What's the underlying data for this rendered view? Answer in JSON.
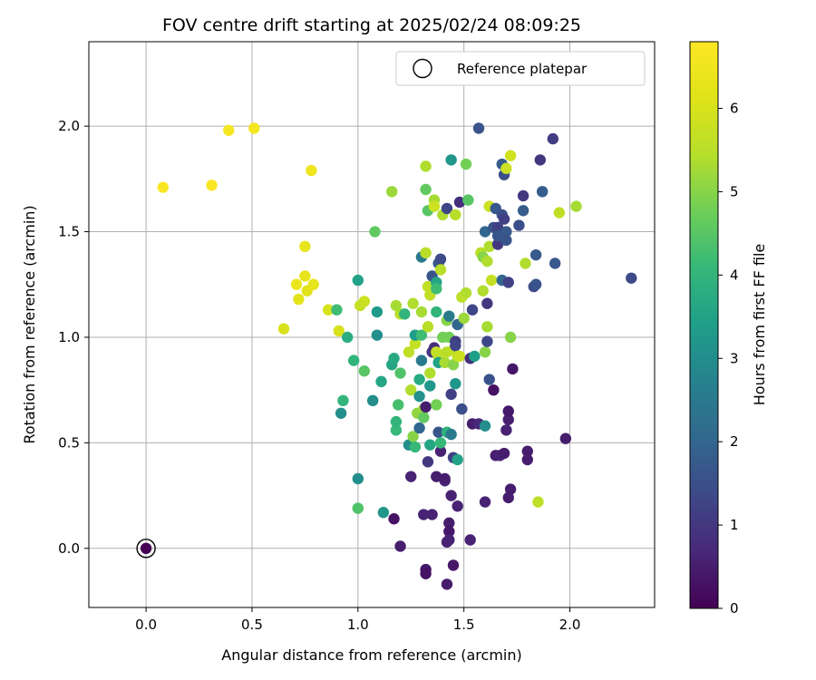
{
  "chart_data": {
    "type": "scatter",
    "title": "FOV centre drift starting at 2025/02/24 08:09:25",
    "xlabel": "Angular distance from reference (arcmin)",
    "ylabel": "Rotation from reference (arcmin)",
    "xlim": [
      -0.27,
      2.4
    ],
    "ylim": [
      -0.28,
      2.4
    ],
    "x_ticks": [
      0.0,
      0.5,
      1.0,
      1.5,
      2.0
    ],
    "y_ticks": [
      0.0,
      0.5,
      1.0,
      1.5,
      2.0
    ],
    "x_tick_labels": [
      "0.0",
      "0.5",
      "1.0",
      "1.5",
      "2.0"
    ],
    "y_tick_labels": [
      "0.0",
      "0.5",
      "1.0",
      "1.5",
      "2.0"
    ],
    "grid": true,
    "colormap": "viridis",
    "colorbar": {
      "label": "Hours from first FF file",
      "range": [
        0,
        6.8
      ],
      "ticks": [
        0,
        1,
        2,
        3,
        4,
        5,
        6
      ],
      "tick_labels": [
        "0",
        "1",
        "2",
        "3",
        "4",
        "5",
        "6"
      ]
    },
    "legend": {
      "position": "top-right",
      "entries": [
        {
          "label": "Reference platepar",
          "marker": "open-circle"
        }
      ]
    },
    "reference_point": {
      "x": 0.0,
      "y": 0.0
    },
    "points": [
      {
        "x": 0.0,
        "y": 0.0,
        "c": 0.0
      },
      {
        "x": 0.08,
        "y": 1.71,
        "c": 6.7
      },
      {
        "x": 0.31,
        "y": 1.72,
        "c": 6.7
      },
      {
        "x": 0.39,
        "y": 1.98,
        "c": 6.6
      },
      {
        "x": 0.51,
        "y": 1.99,
        "c": 6.6
      },
      {
        "x": 0.78,
        "y": 1.79,
        "c": 6.5
      },
      {
        "x": 0.65,
        "y": 1.04,
        "c": 6.0
      },
      {
        "x": 0.71,
        "y": 1.25,
        "c": 6.4
      },
      {
        "x": 0.72,
        "y": 1.18,
        "c": 6.2
      },
      {
        "x": 0.75,
        "y": 1.29,
        "c": 6.3
      },
      {
        "x": 0.76,
        "y": 1.22,
        "c": 6.2
      },
      {
        "x": 0.79,
        "y": 1.25,
        "c": 6.3
      },
      {
        "x": 0.75,
        "y": 1.43,
        "c": 6.3
      },
      {
        "x": 0.86,
        "y": 1.13,
        "c": 6.0
      },
      {
        "x": 0.91,
        "y": 1.03,
        "c": 6.0
      },
      {
        "x": 1.03,
        "y": 1.17,
        "c": 5.8
      },
      {
        "x": 1.01,
        "y": 1.15,
        "c": 5.7
      },
      {
        "x": 0.9,
        "y": 1.13,
        "c": 4.2
      },
      {
        "x": 0.93,
        "y": 0.7,
        "c": 4.0
      },
      {
        "x": 0.92,
        "y": 0.64,
        "c": 3.0
      },
      {
        "x": 0.95,
        "y": 1.0,
        "c": 3.8
      },
      {
        "x": 0.98,
        "y": 0.89,
        "c": 4.0
      },
      {
        "x": 1.0,
        "y": 1.27,
        "c": 3.5
      },
      {
        "x": 1.0,
        "y": 0.33,
        "c": 3.0
      },
      {
        "x": 1.0,
        "y": 0.19,
        "c": 4.4
      },
      {
        "x": 1.03,
        "y": 0.84,
        "c": 4.5
      },
      {
        "x": 1.07,
        "y": 0.7,
        "c": 3.0
      },
      {
        "x": 1.08,
        "y": 1.5,
        "c": 4.6
      },
      {
        "x": 1.09,
        "y": 1.01,
        "c": 3.0
      },
      {
        "x": 1.09,
        "y": 1.12,
        "c": 3.3
      },
      {
        "x": 1.11,
        "y": 0.79,
        "c": 3.6
      },
      {
        "x": 1.12,
        "y": 0.17,
        "c": 3.2
      },
      {
        "x": 1.16,
        "y": 1.69,
        "c": 5.2
      },
      {
        "x": 1.17,
        "y": 0.14,
        "c": 0.3
      },
      {
        "x": 1.16,
        "y": 0.87,
        "c": 3.6
      },
      {
        "x": 1.17,
        "y": 0.9,
        "c": 3.7
      },
      {
        "x": 1.18,
        "y": 0.56,
        "c": 4.1
      },
      {
        "x": 1.18,
        "y": 0.6,
        "c": 4.0
      },
      {
        "x": 1.19,
        "y": 0.68,
        "c": 4.3
      },
      {
        "x": 1.2,
        "y": 0.01,
        "c": 0.5
      },
      {
        "x": 1.2,
        "y": 1.11,
        "c": 5.5
      },
      {
        "x": 1.2,
        "y": 0.83,
        "c": 4.4
      },
      {
        "x": 1.18,
        "y": 1.15,
        "c": 5.3
      },
      {
        "x": 1.22,
        "y": 1.11,
        "c": 4.0
      },
      {
        "x": 1.24,
        "y": 0.49,
        "c": 3.0
      },
      {
        "x": 1.24,
        "y": 0.93,
        "c": 5.6
      },
      {
        "x": 1.25,
        "y": 0.75,
        "c": 5.4
      },
      {
        "x": 1.26,
        "y": 1.16,
        "c": 5.4
      },
      {
        "x": 1.25,
        "y": 0.34,
        "c": 0.6
      },
      {
        "x": 1.26,
        "y": 0.53,
        "c": 5.0
      },
      {
        "x": 1.27,
        "y": 0.97,
        "c": 5.7
      },
      {
        "x": 1.27,
        "y": 1.01,
        "c": 3.4
      },
      {
        "x": 1.27,
        "y": 0.48,
        "c": 4.1
      },
      {
        "x": 1.28,
        "y": 0.64,
        "c": 5.1
      },
      {
        "x": 1.29,
        "y": 0.72,
        "c": 3.1
      },
      {
        "x": 1.29,
        "y": 0.8,
        "c": 3.7
      },
      {
        "x": 1.29,
        "y": 0.57,
        "c": 2.0
      },
      {
        "x": 1.3,
        "y": 0.89,
        "c": 2.5
      },
      {
        "x": 1.3,
        "y": 1.12,
        "c": 5.3
      },
      {
        "x": 1.3,
        "y": 1.38,
        "c": 2.5
      },
      {
        "x": 1.3,
        "y": 1.01,
        "c": 4.2
      },
      {
        "x": 1.31,
        "y": 0.66,
        "c": 5.2
      },
      {
        "x": 1.31,
        "y": 0.62,
        "c": 4.6
      },
      {
        "x": 1.31,
        "y": 0.16,
        "c": 0.6
      },
      {
        "x": 1.32,
        "y": 0.67,
        "c": 0.5
      },
      {
        "x": 1.32,
        "y": -0.1,
        "c": 0.4
      },
      {
        "x": 1.32,
        "y": -0.12,
        "c": 0.3
      },
      {
        "x": 1.32,
        "y": 1.7,
        "c": 4.6
      },
      {
        "x": 1.32,
        "y": 1.81,
        "c": 5.4
      },
      {
        "x": 1.33,
        "y": 1.6,
        "c": 4.5
      },
      {
        "x": 1.32,
        "y": 1.4,
        "c": 5.5
      },
      {
        "x": 1.33,
        "y": 1.24,
        "c": 5.6
      },
      {
        "x": 1.33,
        "y": 1.05,
        "c": 5.5
      },
      {
        "x": 1.33,
        "y": 0.41,
        "c": 1.0
      },
      {
        "x": 1.34,
        "y": 0.49,
        "c": 3.6
      },
      {
        "x": 1.34,
        "y": 0.83,
        "c": 5.4
      },
      {
        "x": 1.34,
        "y": 0.77,
        "c": 3.2
      },
      {
        "x": 1.34,
        "y": 1.2,
        "c": 5.6
      },
      {
        "x": 1.35,
        "y": 1.29,
        "c": 1.6
      },
      {
        "x": 1.35,
        "y": 0.93,
        "c": 1.0
      },
      {
        "x": 1.35,
        "y": 0.16,
        "c": 0.6
      },
      {
        "x": 1.36,
        "y": 0.95,
        "c": 0.8
      },
      {
        "x": 1.36,
        "y": 1.65,
        "c": 5.3
      },
      {
        "x": 1.36,
        "y": 1.62,
        "c": 5.8
      },
      {
        "x": 1.37,
        "y": 1.26,
        "c": 3.6
      },
      {
        "x": 1.37,
        "y": 1.23,
        "c": 4.2
      },
      {
        "x": 1.37,
        "y": 1.12,
        "c": 4.0
      },
      {
        "x": 1.37,
        "y": 0.34,
        "c": 0.5
      },
      {
        "x": 1.37,
        "y": 0.93,
        "c": 5.7
      },
      {
        "x": 1.37,
        "y": 0.68,
        "c": 4.8
      },
      {
        "x": 1.38,
        "y": 1.35,
        "c": 1.8
      },
      {
        "x": 1.38,
        "y": 0.91,
        "c": 5.6
      },
      {
        "x": 1.38,
        "y": 0.88,
        "c": 3.5
      },
      {
        "x": 1.38,
        "y": 0.55,
        "c": 1.6
      },
      {
        "x": 1.39,
        "y": 0.46,
        "c": 0.6
      },
      {
        "x": 1.39,
        "y": 1.37,
        "c": 1.4
      },
      {
        "x": 1.39,
        "y": 1.32,
        "c": 5.5
      },
      {
        "x": 1.39,
        "y": 0.5,
        "c": 4.1
      },
      {
        "x": 1.4,
        "y": 1.58,
        "c": 5.4
      },
      {
        "x": 1.4,
        "y": 1.0,
        "c": 4.8
      },
      {
        "x": 1.41,
        "y": 0.88,
        "c": 5.3
      },
      {
        "x": 1.41,
        "y": 0.32,
        "c": 0.7
      },
      {
        "x": 1.41,
        "y": 0.33,
        "c": 0.5
      },
      {
        "x": 1.42,
        "y": 1.08,
        "c": 5.0
      },
      {
        "x": 1.42,
        "y": 0.55,
        "c": 3.9
      },
      {
        "x": 1.42,
        "y": 0.93,
        "c": 5.5
      },
      {
        "x": 1.42,
        "y": 0.03,
        "c": 0.6
      },
      {
        "x": 1.42,
        "y": -0.17,
        "c": 0.5
      },
      {
        "x": 1.42,
        "y": 1.61,
        "c": 1.3
      },
      {
        "x": 1.43,
        "y": 0.12,
        "c": 0.5
      },
      {
        "x": 1.43,
        "y": 0.08,
        "c": 0.4
      },
      {
        "x": 1.43,
        "y": 1.0,
        "c": 4.8
      },
      {
        "x": 1.43,
        "y": 1.1,
        "c": 2.5
      },
      {
        "x": 1.43,
        "y": 0.04,
        "c": 0.6
      },
      {
        "x": 1.44,
        "y": 1.84,
        "c": 3.2
      },
      {
        "x": 1.44,
        "y": 0.54,
        "c": 2.5
      },
      {
        "x": 1.44,
        "y": 0.25,
        "c": 0.6
      },
      {
        "x": 1.44,
        "y": 0.73,
        "c": 1.2
      },
      {
        "x": 1.45,
        "y": 0.87,
        "c": 5.0
      },
      {
        "x": 1.45,
        "y": 0.94,
        "c": 5.6
      },
      {
        "x": 1.45,
        "y": -0.08,
        "c": 0.4
      },
      {
        "x": 1.45,
        "y": 0.43,
        "c": 1.2
      },
      {
        "x": 1.46,
        "y": 0.98,
        "c": 1.1
      },
      {
        "x": 1.46,
        "y": 1.58,
        "c": 5.5
      },
      {
        "x": 1.46,
        "y": 0.78,
        "c": 3.2
      },
      {
        "x": 1.46,
        "y": 0.96,
        "c": 1.3
      },
      {
        "x": 1.47,
        "y": 0.2,
        "c": 0.6
      },
      {
        "x": 1.47,
        "y": 1.06,
        "c": 2.0
      },
      {
        "x": 1.47,
        "y": 0.42,
        "c": 3.5
      },
      {
        "x": 1.47,
        "y": 0.91,
        "c": 5.6
      },
      {
        "x": 1.48,
        "y": 1.64,
        "c": 0.8
      },
      {
        "x": 1.48,
        "y": 0.91,
        "c": 5.8
      },
      {
        "x": 1.49,
        "y": 0.66,
        "c": 1.5
      },
      {
        "x": 1.49,
        "y": 1.19,
        "c": 5.6
      },
      {
        "x": 1.5,
        "y": 1.09,
        "c": 5.2
      },
      {
        "x": 1.51,
        "y": 1.82,
        "c": 4.8
      },
      {
        "x": 1.51,
        "y": 1.21,
        "c": 5.4
      },
      {
        "x": 1.52,
        "y": 1.65,
        "c": 4.5
      },
      {
        "x": 1.53,
        "y": 0.04,
        "c": 0.6
      },
      {
        "x": 1.53,
        "y": 0.9,
        "c": 0.8
      },
      {
        "x": 1.54,
        "y": 0.59,
        "c": 0.5
      },
      {
        "x": 1.54,
        "y": 1.13,
        "c": 1.3
      },
      {
        "x": 1.55,
        "y": 0.91,
        "c": 3.4
      },
      {
        "x": 1.57,
        "y": 1.99,
        "c": 1.6
      },
      {
        "x": 1.57,
        "y": 0.59,
        "c": 0.7
      },
      {
        "x": 1.58,
        "y": 1.4,
        "c": 5.5
      },
      {
        "x": 1.59,
        "y": 1.38,
        "c": 5.0
      },
      {
        "x": 1.59,
        "y": 1.22,
        "c": 5.4
      },
      {
        "x": 1.6,
        "y": 0.93,
        "c": 5.0
      },
      {
        "x": 1.6,
        "y": 1.5,
        "c": 2.0
      },
      {
        "x": 1.6,
        "y": 0.58,
        "c": 3.0
      },
      {
        "x": 1.6,
        "y": 0.22,
        "c": 0.6
      },
      {
        "x": 1.61,
        "y": 1.36,
        "c": 5.4
      },
      {
        "x": 1.61,
        "y": 1.05,
        "c": 5.3
      },
      {
        "x": 1.61,
        "y": 1.16,
        "c": 1.0
      },
      {
        "x": 1.61,
        "y": 0.98,
        "c": 1.3
      },
      {
        "x": 1.62,
        "y": 0.8,
        "c": 1.6
      },
      {
        "x": 1.62,
        "y": 1.43,
        "c": 5.4
      },
      {
        "x": 1.62,
        "y": 1.62,
        "c": 5.8
      },
      {
        "x": 1.63,
        "y": 1.27,
        "c": 5.7
      },
      {
        "x": 1.64,
        "y": 0.75,
        "c": 0.3
      },
      {
        "x": 1.64,
        "y": 1.52,
        "c": 1.6
      },
      {
        "x": 1.65,
        "y": 0.44,
        "c": 0.5
      },
      {
        "x": 1.65,
        "y": 1.61,
        "c": 1.7
      },
      {
        "x": 1.66,
        "y": 1.44,
        "c": 1.0
      },
      {
        "x": 1.66,
        "y": 1.52,
        "c": 1.2
      },
      {
        "x": 1.66,
        "y": 1.48,
        "c": 1.6
      },
      {
        "x": 1.67,
        "y": 0.44,
        "c": 0.6
      },
      {
        "x": 1.68,
        "y": 1.82,
        "c": 1.8
      },
      {
        "x": 1.68,
        "y": 1.58,
        "c": 1.5
      },
      {
        "x": 1.68,
        "y": 1.27,
        "c": 2.0
      },
      {
        "x": 1.69,
        "y": 1.77,
        "c": 1.5
      },
      {
        "x": 1.69,
        "y": 1.56,
        "c": 1.2
      },
      {
        "x": 1.69,
        "y": 0.45,
        "c": 0.5
      },
      {
        "x": 1.7,
        "y": 0.56,
        "c": 0.6
      },
      {
        "x": 1.7,
        "y": 1.8,
        "c": 5.8
      },
      {
        "x": 1.7,
        "y": 1.5,
        "c": 1.7
      },
      {
        "x": 1.7,
        "y": 1.46,
        "c": 1.6
      },
      {
        "x": 1.71,
        "y": 0.61,
        "c": 0.5
      },
      {
        "x": 1.71,
        "y": 0.65,
        "c": 0.4
      },
      {
        "x": 1.71,
        "y": 0.24,
        "c": 0.5
      },
      {
        "x": 1.71,
        "y": 1.26,
        "c": 1.2
      },
      {
        "x": 1.72,
        "y": 1.86,
        "c": 5.9
      },
      {
        "x": 1.72,
        "y": 0.28,
        "c": 0.5
      },
      {
        "x": 1.72,
        "y": 1.0,
        "c": 5.0
      },
      {
        "x": 1.73,
        "y": 0.85,
        "c": 0.4
      },
      {
        "x": 1.76,
        "y": 1.53,
        "c": 1.5
      },
      {
        "x": 1.78,
        "y": 1.6,
        "c": 1.8
      },
      {
        "x": 1.78,
        "y": 1.67,
        "c": 1.0
      },
      {
        "x": 1.79,
        "y": 1.35,
        "c": 5.4
      },
      {
        "x": 1.8,
        "y": 0.46,
        "c": 0.5
      },
      {
        "x": 1.8,
        "y": 0.42,
        "c": 0.5
      },
      {
        "x": 1.83,
        "y": 1.24,
        "c": 1.4
      },
      {
        "x": 1.84,
        "y": 1.25,
        "c": 1.6
      },
      {
        "x": 1.84,
        "y": 1.39,
        "c": 1.7
      },
      {
        "x": 1.85,
        "y": 0.22,
        "c": 5.6
      },
      {
        "x": 1.86,
        "y": 1.84,
        "c": 1.0
      },
      {
        "x": 1.87,
        "y": 1.69,
        "c": 1.8
      },
      {
        "x": 1.92,
        "y": 1.94,
        "c": 1.1
      },
      {
        "x": 1.93,
        "y": 1.35,
        "c": 1.7
      },
      {
        "x": 1.95,
        "y": 1.59,
        "c": 5.6
      },
      {
        "x": 1.98,
        "y": 0.52,
        "c": 0.5
      },
      {
        "x": 2.03,
        "y": 1.62,
        "c": 5.3
      },
      {
        "x": 2.29,
        "y": 1.28,
        "c": 1.4
      }
    ]
  }
}
